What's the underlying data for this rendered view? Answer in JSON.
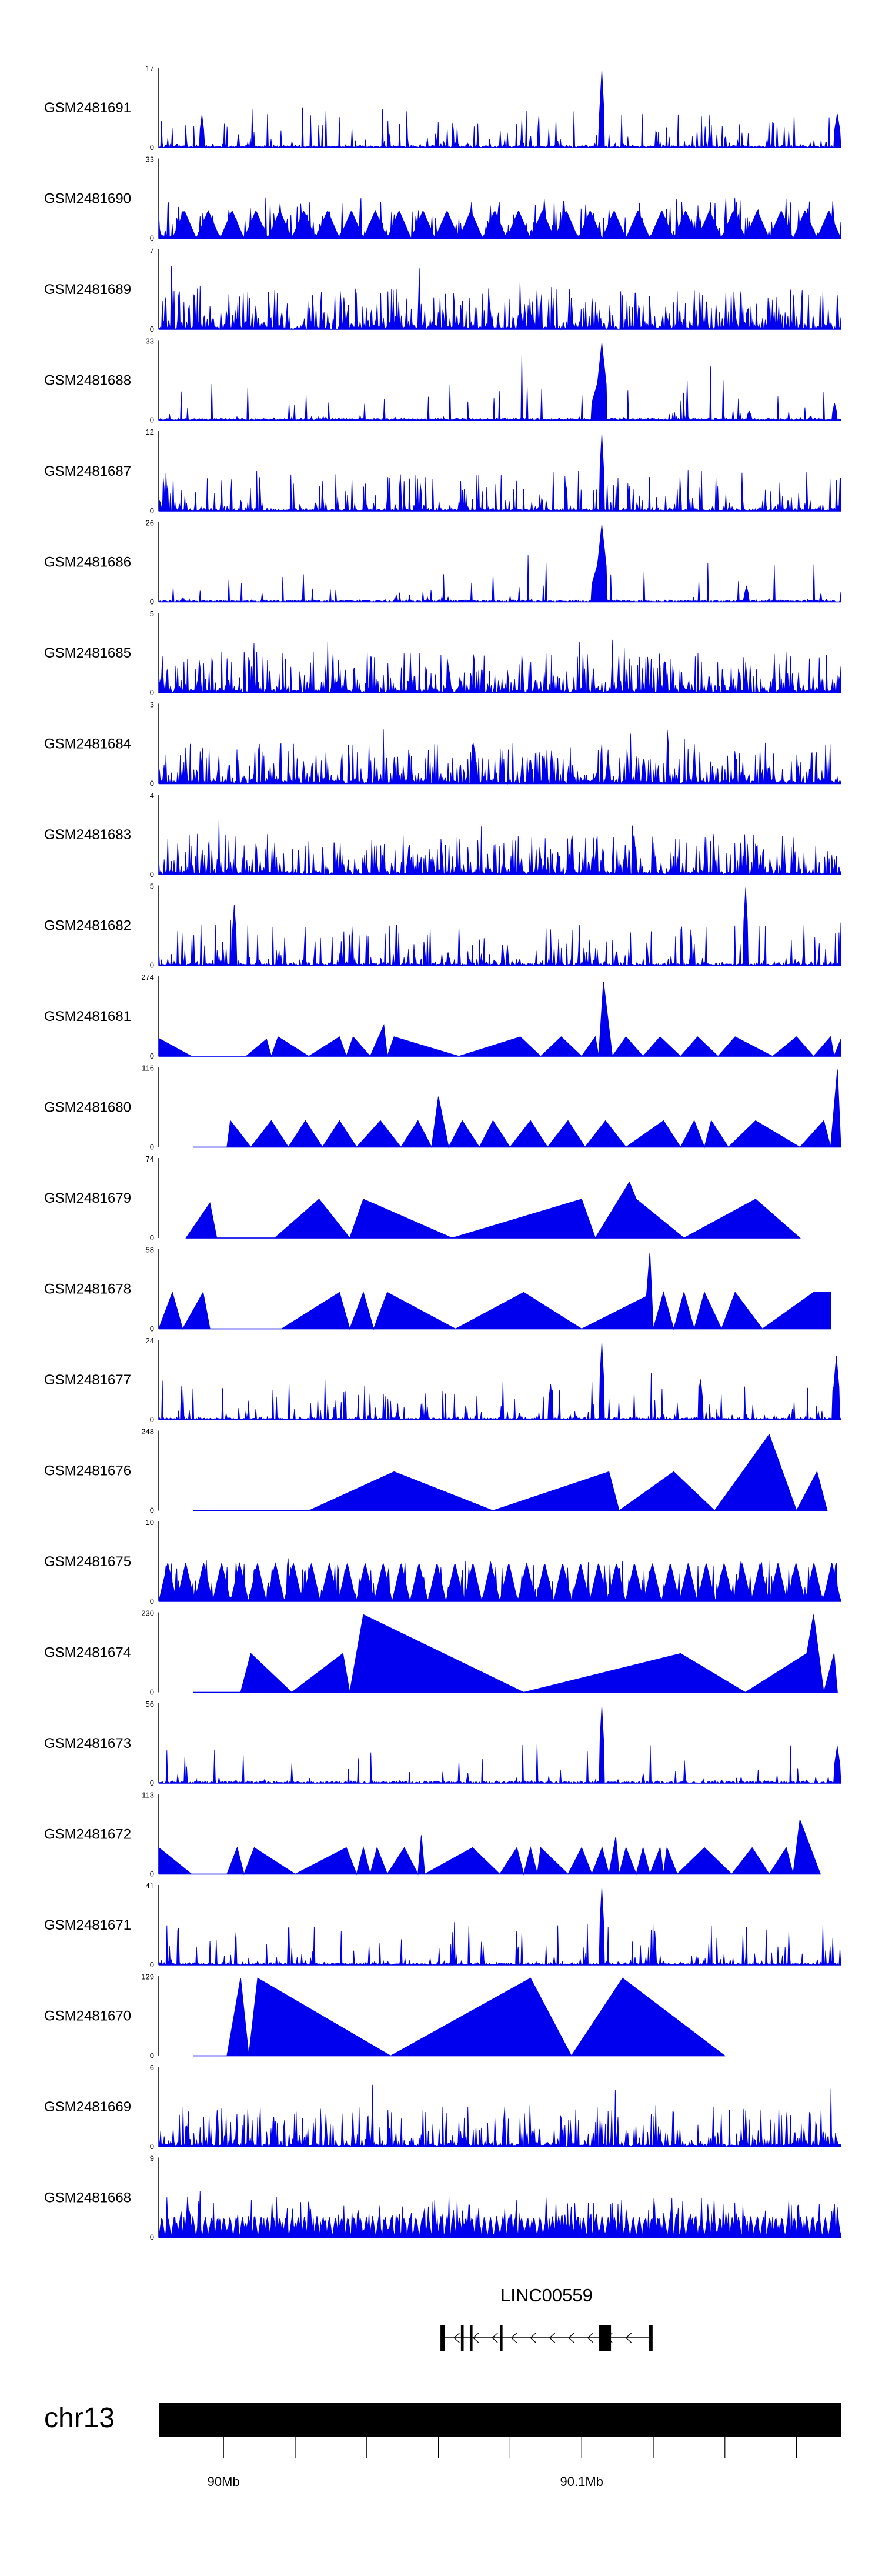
{
  "chart_data": {
    "type": "area",
    "track_color": "#0000ee",
    "value_axis_min": 0,
    "tracks": [
      {
        "name": "GSM2481691",
        "ymax": 17,
        "style": "noise",
        "seed": 11,
        "density": 0.22,
        "peaks": [
          [
            0.65,
            1.0,
            0.003
          ],
          [
            0.063,
            0.42,
            0.002
          ],
          [
            0.995,
            0.44,
            0.004
          ]
        ]
      },
      {
        "name": "GSM2481690",
        "ymax": 33,
        "style": "tent_noise",
        "seed": 12,
        "density": 0.5,
        "start": 0.02,
        "tents": 28,
        "tent_h": 0.36
      },
      {
        "name": "GSM2481689",
        "ymax": 7,
        "style": "noise",
        "seed": 13,
        "density": 0.75,
        "peaks": []
      },
      {
        "name": "GSM2481688",
        "ymax": 33,
        "style": "noise",
        "seed": 14,
        "density": 0.08,
        "peaks": [
          [
            0.65,
            1.0,
            0.006
          ],
          [
            0.645,
            0.55,
            0.01
          ],
          [
            0.991,
            0.22,
            0.003
          ],
          [
            0.865,
            0.12,
            0.003
          ]
        ]
      },
      {
        "name": "GSM2481687",
        "ymax": 12,
        "style": "noise",
        "seed": 15,
        "density": 0.35,
        "peaks": [
          [
            0.65,
            1.0,
            0.003
          ]
        ]
      },
      {
        "name": "GSM2481686",
        "ymax": 26,
        "style": "noise",
        "seed": 16,
        "density": 0.08,
        "peaks": [
          [
            0.65,
            1.0,
            0.006
          ],
          [
            0.645,
            0.55,
            0.01
          ],
          [
            0.862,
            0.2,
            0.003
          ]
        ]
      },
      {
        "name": "GSM2481685",
        "ymax": 5,
        "style": "noise",
        "seed": 17,
        "density": 0.7,
        "peaks": []
      },
      {
        "name": "GSM2481684",
        "ymax": 3,
        "style": "noise",
        "seed": 18,
        "density": 0.75,
        "peaks": []
      },
      {
        "name": "GSM2481683",
        "ymax": 4,
        "style": "noise",
        "seed": 19,
        "density": 0.7,
        "peaks": []
      },
      {
        "name": "GSM2481682",
        "ymax": 5,
        "style": "noise",
        "seed": 20,
        "density": 0.35,
        "peaks": [
          [
            0.86,
            1.0,
            0.003
          ],
          [
            0.111,
            0.78,
            0.002
          ]
        ]
      },
      {
        "name": "GSM2481681",
        "ymax": 274,
        "style": "points",
        "pts": [
          [
            0,
            0
          ],
          [
            0,
            0.23
          ],
          [
            0.048,
            0
          ],
          [
            0.128,
            0
          ],
          [
            0.158,
            0.22
          ],
          [
            0.165,
            0
          ],
          [
            0.175,
            0.25
          ],
          [
            0.22,
            0
          ],
          [
            0.265,
            0.25
          ],
          [
            0.275,
            0
          ],
          [
            0.285,
            0.25
          ],
          [
            0.31,
            0
          ],
          [
            0.33,
            0.4
          ],
          [
            0.335,
            0
          ],
          [
            0.345,
            0.25
          ],
          [
            0.44,
            0
          ],
          [
            0.53,
            0.25
          ],
          [
            0.56,
            0
          ],
          [
            0.59,
            0.25
          ],
          [
            0.62,
            0
          ],
          [
            0.64,
            0.25
          ],
          [
            0.645,
            0
          ],
          [
            0.652,
            0.96
          ],
          [
            0.665,
            0
          ],
          [
            0.685,
            0.25
          ],
          [
            0.71,
            0
          ],
          [
            0.735,
            0.25
          ],
          [
            0.765,
            0
          ],
          [
            0.79,
            0.25
          ],
          [
            0.82,
            0
          ],
          [
            0.845,
            0.25
          ],
          [
            0.9,
            0
          ],
          [
            0.935,
            0.25
          ],
          [
            0.96,
            0
          ],
          [
            0.985,
            0.25
          ],
          [
            0.99,
            0
          ],
          [
            1,
            0.22
          ],
          [
            1,
            0
          ]
        ]
      },
      {
        "name": "GSM2481680",
        "ymax": 116,
        "style": "points",
        "pts": [
          [
            0.05,
            0
          ],
          [
            0.1,
            0
          ],
          [
            0.105,
            0.34
          ],
          [
            0.135,
            0
          ],
          [
            0.165,
            0.34
          ],
          [
            0.19,
            0
          ],
          [
            0.215,
            0.34
          ],
          [
            0.24,
            0
          ],
          [
            0.265,
            0.34
          ],
          [
            0.29,
            0
          ],
          [
            0.325,
            0.34
          ],
          [
            0.355,
            0
          ],
          [
            0.38,
            0.34
          ],
          [
            0.4,
            0
          ],
          [
            0.41,
            0.65
          ],
          [
            0.425,
            0
          ],
          [
            0.445,
            0.34
          ],
          [
            0.47,
            0
          ],
          [
            0.49,
            0.34
          ],
          [
            0.515,
            0
          ],
          [
            0.545,
            0.34
          ],
          [
            0.57,
            0
          ],
          [
            0.6,
            0.34
          ],
          [
            0.625,
            0
          ],
          [
            0.655,
            0.34
          ],
          [
            0.685,
            0
          ],
          [
            0.74,
            0.34
          ],
          [
            0.765,
            0
          ],
          [
            0.785,
            0.34
          ],
          [
            0.8,
            0
          ],
          [
            0.81,
            0.34
          ],
          [
            0.835,
            0
          ],
          [
            0.875,
            0.34
          ],
          [
            0.94,
            0
          ],
          [
            0.975,
            0.34
          ],
          [
            0.985,
            0
          ],
          [
            0.995,
            1.0
          ],
          [
            1,
            0
          ],
          [
            1,
            0
          ]
        ]
      },
      {
        "name": "GSM2481679",
        "ymax": 74,
        "style": "points",
        "pts": [
          [
            0.04,
            0
          ],
          [
            0.075,
            0.45
          ],
          [
            0.085,
            0
          ],
          [
            0.17,
            0
          ],
          [
            0.235,
            0.5
          ],
          [
            0.28,
            0
          ],
          [
            0.3,
            0.5
          ],
          [
            0.43,
            0
          ],
          [
            0.62,
            0.5
          ],
          [
            0.64,
            0
          ],
          [
            0.69,
            0.72
          ],
          [
            0.7,
            0.5
          ],
          [
            0.77,
            0
          ],
          [
            0.875,
            0.5
          ],
          [
            0.94,
            0
          ]
        ]
      },
      {
        "name": "GSM2481678",
        "ymax": 58,
        "style": "points",
        "pts": [
          [
            0,
            0
          ],
          [
            0.02,
            0.47
          ],
          [
            0.035,
            0
          ],
          [
            0.065,
            0.47
          ],
          [
            0.075,
            0
          ],
          [
            0.18,
            0
          ],
          [
            0.265,
            0.47
          ],
          [
            0.28,
            0
          ],
          [
            0.3,
            0.47
          ],
          [
            0.315,
            0
          ],
          [
            0.335,
            0.47
          ],
          [
            0.435,
            0
          ],
          [
            0.535,
            0.47
          ],
          [
            0.62,
            0
          ],
          [
            0.715,
            0.42
          ],
          [
            0.72,
            0.98
          ],
          [
            0.725,
            0
          ],
          [
            0.74,
            0.47
          ],
          [
            0.755,
            0
          ],
          [
            0.77,
            0.47
          ],
          [
            0.785,
            0
          ],
          [
            0.8,
            0.47
          ],
          [
            0.825,
            0
          ],
          [
            0.845,
            0.47
          ],
          [
            0.885,
            0
          ],
          [
            0.96,
            0.47
          ],
          [
            0.985,
            0.47
          ],
          [
            0.985,
            0
          ]
        ]
      },
      {
        "name": "GSM2481677",
        "ymax": 24,
        "style": "noise",
        "seed": 21,
        "density": 0.2,
        "peaks": [
          [
            0.65,
            1.0,
            0.003
          ],
          [
            0.993,
            0.82,
            0.004
          ],
          [
            0.795,
            0.52,
            0.002
          ],
          [
            0.575,
            0.46,
            0.002
          ]
        ]
      },
      {
        "name": "GSM2481676",
        "ymax": 248,
        "style": "points",
        "pts": [
          [
            0.05,
            0
          ],
          [
            0.22,
            0
          ],
          [
            0.345,
            0.5
          ],
          [
            0.49,
            0
          ],
          [
            0.66,
            0.5
          ],
          [
            0.675,
            0
          ],
          [
            0.755,
            0.5
          ],
          [
            0.815,
            0
          ],
          [
            0.895,
            0.98
          ],
          [
            0.935,
            0
          ],
          [
            0.965,
            0.5
          ],
          [
            0.98,
            0
          ]
        ]
      },
      {
        "name": "GSM2481675",
        "ymax": 10,
        "style": "tent_noise",
        "seed": 22,
        "density": 0.5,
        "start": 0.0,
        "tents": 38,
        "tent_h": 0.5
      },
      {
        "name": "GSM2481674",
        "ymax": 230,
        "style": "points",
        "pts": [
          [
            0.05,
            0
          ],
          [
            0.12,
            0
          ],
          [
            0.135,
            0.5
          ],
          [
            0.195,
            0
          ],
          [
            0.27,
            0.5
          ],
          [
            0.28,
            0
          ],
          [
            0.3,
            1.0
          ],
          [
            0.535,
            0
          ],
          [
            0.765,
            0.5
          ],
          [
            0.86,
            0
          ],
          [
            0.95,
            0.5
          ],
          [
            0.96,
            1.0
          ],
          [
            0.975,
            0
          ],
          [
            0.99,
            0.5
          ],
          [
            0.995,
            0
          ]
        ]
      },
      {
        "name": "GSM2481673",
        "ymax": 56,
        "style": "noise",
        "seed": 23,
        "density": 0.12,
        "peaks": [
          [
            0.65,
            1.0,
            0.003
          ],
          [
            0.995,
            0.48,
            0.004
          ]
        ]
      },
      {
        "name": "GSM2481672",
        "ymax": 113,
        "style": "points",
        "pts": [
          [
            0,
            0
          ],
          [
            0,
            0.34
          ],
          [
            0.048,
            0
          ],
          [
            0.1,
            0
          ],
          [
            0.115,
            0.34
          ],
          [
            0.125,
            0
          ],
          [
            0.14,
            0.34
          ],
          [
            0.2,
            0
          ],
          [
            0.275,
            0.34
          ],
          [
            0.29,
            0
          ],
          [
            0.3,
            0.34
          ],
          [
            0.31,
            0
          ],
          [
            0.32,
            0.34
          ],
          [
            0.335,
            0
          ],
          [
            0.36,
            0.34
          ],
          [
            0.38,
            0
          ],
          [
            0.385,
            0.5
          ],
          [
            0.39,
            0
          ],
          [
            0.46,
            0.34
          ],
          [
            0.5,
            0
          ],
          [
            0.525,
            0.34
          ],
          [
            0.535,
            0
          ],
          [
            0.545,
            0.34
          ],
          [
            0.555,
            0
          ],
          [
            0.56,
            0.34
          ],
          [
            0.6,
            0
          ],
          [
            0.62,
            0.34
          ],
          [
            0.635,
            0
          ],
          [
            0.65,
            0.34
          ],
          [
            0.66,
            0
          ],
          [
            0.67,
            0.48
          ],
          [
            0.675,
            0
          ],
          [
            0.685,
            0.34
          ],
          [
            0.7,
            0
          ],
          [
            0.71,
            0.34
          ],
          [
            0.72,
            0
          ],
          [
            0.735,
            0.34
          ],
          [
            0.74,
            0
          ],
          [
            0.745,
            0.34
          ],
          [
            0.76,
            0
          ],
          [
            0.8,
            0.34
          ],
          [
            0.84,
            0
          ],
          [
            0.87,
            0.34
          ],
          [
            0.895,
            0
          ],
          [
            0.92,
            0.34
          ],
          [
            0.93,
            0
          ],
          [
            0.94,
            0.7
          ],
          [
            0.97,
            0
          ]
        ]
      },
      {
        "name": "GSM2481671",
        "ymax": 41,
        "style": "noise",
        "seed": 24,
        "density": 0.2,
        "peaks": [
          [
            0.65,
            1.0,
            0.003
          ]
        ]
      },
      {
        "name": "GSM2481670",
        "ymax": 129,
        "style": "points",
        "pts": [
          [
            0.05,
            0
          ],
          [
            0.1,
            0
          ],
          [
            0.12,
            1.0
          ],
          [
            0.132,
            0
          ],
          [
            0.145,
            1.0
          ],
          [
            0.34,
            0
          ],
          [
            0.545,
            1.0
          ],
          [
            0.605,
            0
          ],
          [
            0.68,
            1.0
          ],
          [
            0.83,
            0
          ]
        ]
      },
      {
        "name": "GSM2481669",
        "ymax": 6,
        "style": "noise",
        "seed": 25,
        "density": 0.55,
        "peaks": []
      },
      {
        "name": "GSM2481668",
        "ymax": 9,
        "style": "tent_noise",
        "seed": 26,
        "density": 0.6,
        "start": 0.0,
        "tents": 110,
        "tent_h": 0.28
      }
    ],
    "gene": {
      "label": "LINC00559",
      "strand": "-",
      "span_frac": [
        0.413,
        0.724
      ],
      "exons_frac": [
        [
          0.413,
          0.419
        ],
        [
          0.443,
          0.447
        ],
        [
          0.456,
          0.46
        ],
        [
          0.5,
          0.504
        ],
        [
          0.645,
          0.663
        ],
        [
          0.719,
          0.724
        ]
      ]
    },
    "chromosome": {
      "label": "chr13",
      "ticks": [
        {
          "label": "90Mb",
          "frac": 0.095
        },
        {
          "label": "",
          "frac": 0.2
        },
        {
          "label": "",
          "frac": 0.305
        },
        {
          "label": "",
          "frac": 0.41
        },
        {
          "label": "",
          "frac": 0.515
        },
        {
          "label": "90.1Mb",
          "frac": 0.62
        },
        {
          "label": "",
          "frac": 0.725
        },
        {
          "label": "",
          "frac": 0.83
        },
        {
          "label": "",
          "frac": 0.935
        }
      ]
    }
  }
}
